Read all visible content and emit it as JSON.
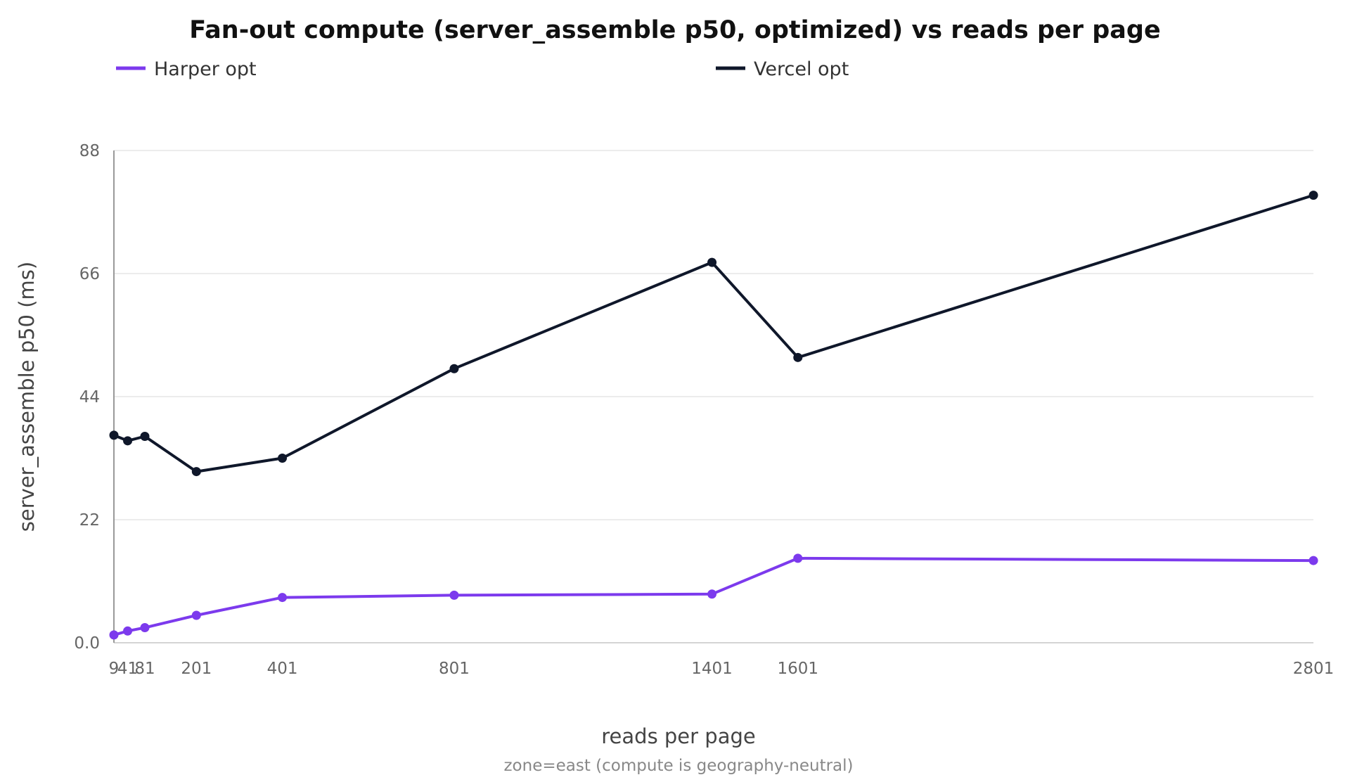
{
  "chart_data": {
    "type": "line",
    "title": "Fan-out compute (server_assemble p50, optimized) vs reads per page",
    "xlabel": "reads per page",
    "ylabel": "server_assemble p50 (ms)",
    "caption": "zone=east (compute is geography-neutral)",
    "x": [
      9,
      41,
      81,
      201,
      401,
      801,
      1401,
      1601,
      2801
    ],
    "x_tick_labels": [
      "9",
      "41",
      "81",
      "201",
      "401",
      "801",
      "1401",
      "1601",
      "2801"
    ],
    "y_ticks": [
      0,
      22,
      44,
      66,
      88
    ],
    "y_tick_labels": [
      "0.0",
      "22",
      "44",
      "66",
      "88"
    ],
    "xlim": [
      9,
      2801
    ],
    "ylim": [
      0,
      88
    ],
    "grid": "horizontal",
    "legend_position": "top",
    "series": [
      {
        "name": "Harper opt",
        "color": "#7c3aed",
        "values": [
          1.4,
          2.1,
          2.7,
          4.9,
          8.1,
          8.5,
          8.7,
          15.1,
          14.7
        ]
      },
      {
        "name": "Vercel opt",
        "color": "#0f172a",
        "values": [
          37.1,
          36.1,
          36.9,
          30.6,
          33.0,
          49.0,
          68.0,
          51.0,
          80.0
        ]
      }
    ]
  }
}
